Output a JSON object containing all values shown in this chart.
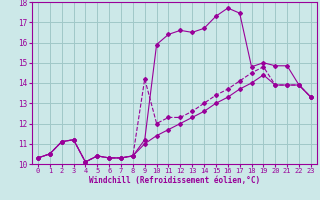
{
  "xlabel": "Windchill (Refroidissement éolien,°C)",
  "bg_color": "#cce8e8",
  "grid_color": "#a0c8c8",
  "line_color": "#990099",
  "xlim": [
    -0.5,
    23.5
  ],
  "ylim": [
    10,
    18
  ],
  "xticks": [
    0,
    1,
    2,
    3,
    4,
    5,
    6,
    7,
    8,
    9,
    10,
    11,
    12,
    13,
    14,
    15,
    16,
    17,
    18,
    19,
    20,
    21,
    22,
    23
  ],
  "yticks": [
    10,
    11,
    12,
    13,
    14,
    15,
    16,
    17,
    18
  ],
  "series_top_x": [
    0,
    1,
    2,
    3,
    4,
    5,
    6,
    7,
    8,
    9,
    10,
    11,
    12,
    13,
    14,
    15,
    16,
    17,
    18,
    19,
    20,
    21,
    22,
    23
  ],
  "series_top_y": [
    10.3,
    10.5,
    11.1,
    11.2,
    10.1,
    10.4,
    10.3,
    10.3,
    10.4,
    11.2,
    15.9,
    16.4,
    16.6,
    16.5,
    16.7,
    17.3,
    17.7,
    17.45,
    14.8,
    15.0,
    14.85,
    14.85,
    13.9,
    13.3
  ],
  "series_mid_x": [
    0,
    1,
    2,
    3,
    4,
    5,
    6,
    7,
    8,
    9,
    10,
    11,
    12,
    13,
    14,
    15,
    16,
    17,
    18,
    19,
    20,
    21,
    22,
    23
  ],
  "series_mid_y": [
    10.3,
    10.5,
    11.1,
    11.2,
    10.1,
    10.4,
    10.3,
    10.3,
    10.4,
    14.2,
    12.0,
    12.3,
    12.3,
    12.6,
    13.0,
    13.4,
    13.7,
    14.1,
    14.5,
    14.8,
    13.9,
    13.9,
    13.9,
    13.3
  ],
  "series_bot_x": [
    0,
    1,
    2,
    3,
    4,
    5,
    6,
    7,
    8,
    9,
    10,
    11,
    12,
    13,
    14,
    15,
    16,
    17,
    18,
    19,
    20,
    21,
    22,
    23
  ],
  "series_bot_y": [
    10.3,
    10.5,
    11.1,
    11.2,
    10.1,
    10.4,
    10.3,
    10.3,
    10.4,
    11.0,
    11.4,
    11.7,
    12.0,
    12.3,
    12.6,
    13.0,
    13.3,
    13.7,
    14.0,
    14.4,
    13.9,
    13.9,
    13.9,
    13.3
  ]
}
